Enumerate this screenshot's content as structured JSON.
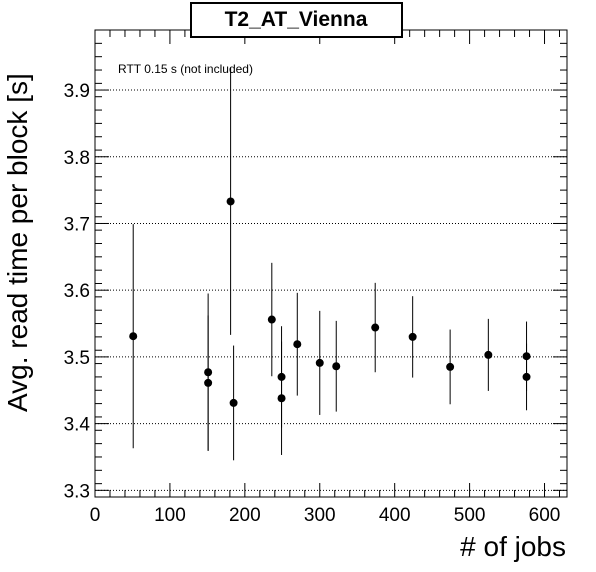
{
  "chart_data": {
    "type": "scatter",
    "title": "T2_AT_Vienna",
    "xlabel": "# of jobs",
    "ylabel": "Avg. read time per block [s]",
    "annotation": "RTT 0.15 s (not included)",
    "xlim": [
      0,
      630
    ],
    "ylim": [
      3.29,
      3.99
    ],
    "xticks": [
      0,
      100,
      200,
      300,
      400,
      500,
      600
    ],
    "xtick_labels": [
      "0",
      "100",
      "200",
      "300",
      "400",
      "500",
      "600"
    ],
    "yticks": [
      3.3,
      3.4,
      3.5,
      3.6,
      3.7,
      3.8,
      3.9
    ],
    "ytick_labels": [
      "3.3",
      "3.4",
      "3.5",
      "3.6",
      "3.7",
      "3.8",
      "3.9"
    ],
    "grid": "horizontal dotted",
    "marker_color": "#000000",
    "points": [
      {
        "x": 51,
        "y": 3.531,
        "err": 0.168
      },
      {
        "x": 151,
        "y": 3.477,
        "err": 0.118
      },
      {
        "x": 151,
        "y": 3.461,
        "err": 0.101
      },
      {
        "x": 181,
        "y": 3.733,
        "err": 0.2
      },
      {
        "x": 185,
        "y": 3.431,
        "err": 0.086
      },
      {
        "x": 236,
        "y": 3.556,
        "err": 0.085
      },
      {
        "x": 249,
        "y": 3.47,
        "err": 0.076
      },
      {
        "x": 249,
        "y": 3.438,
        "err": 0.085
      },
      {
        "x": 270,
        "y": 3.519,
        "err": 0.077
      },
      {
        "x": 300,
        "y": 3.491,
        "err": 0.078
      },
      {
        "x": 322,
        "y": 3.486,
        "err": 0.068
      },
      {
        "x": 374,
        "y": 3.544,
        "err": 0.067
      },
      {
        "x": 424,
        "y": 3.53,
        "err": 0.061
      },
      {
        "x": 474,
        "y": 3.485,
        "err": 0.056
      },
      {
        "x": 525,
        "y": 3.503,
        "err": 0.054
      },
      {
        "x": 576,
        "y": 3.501,
        "err": 0.052
      },
      {
        "x": 576,
        "y": 3.47,
        "err": 0.05
      }
    ]
  }
}
